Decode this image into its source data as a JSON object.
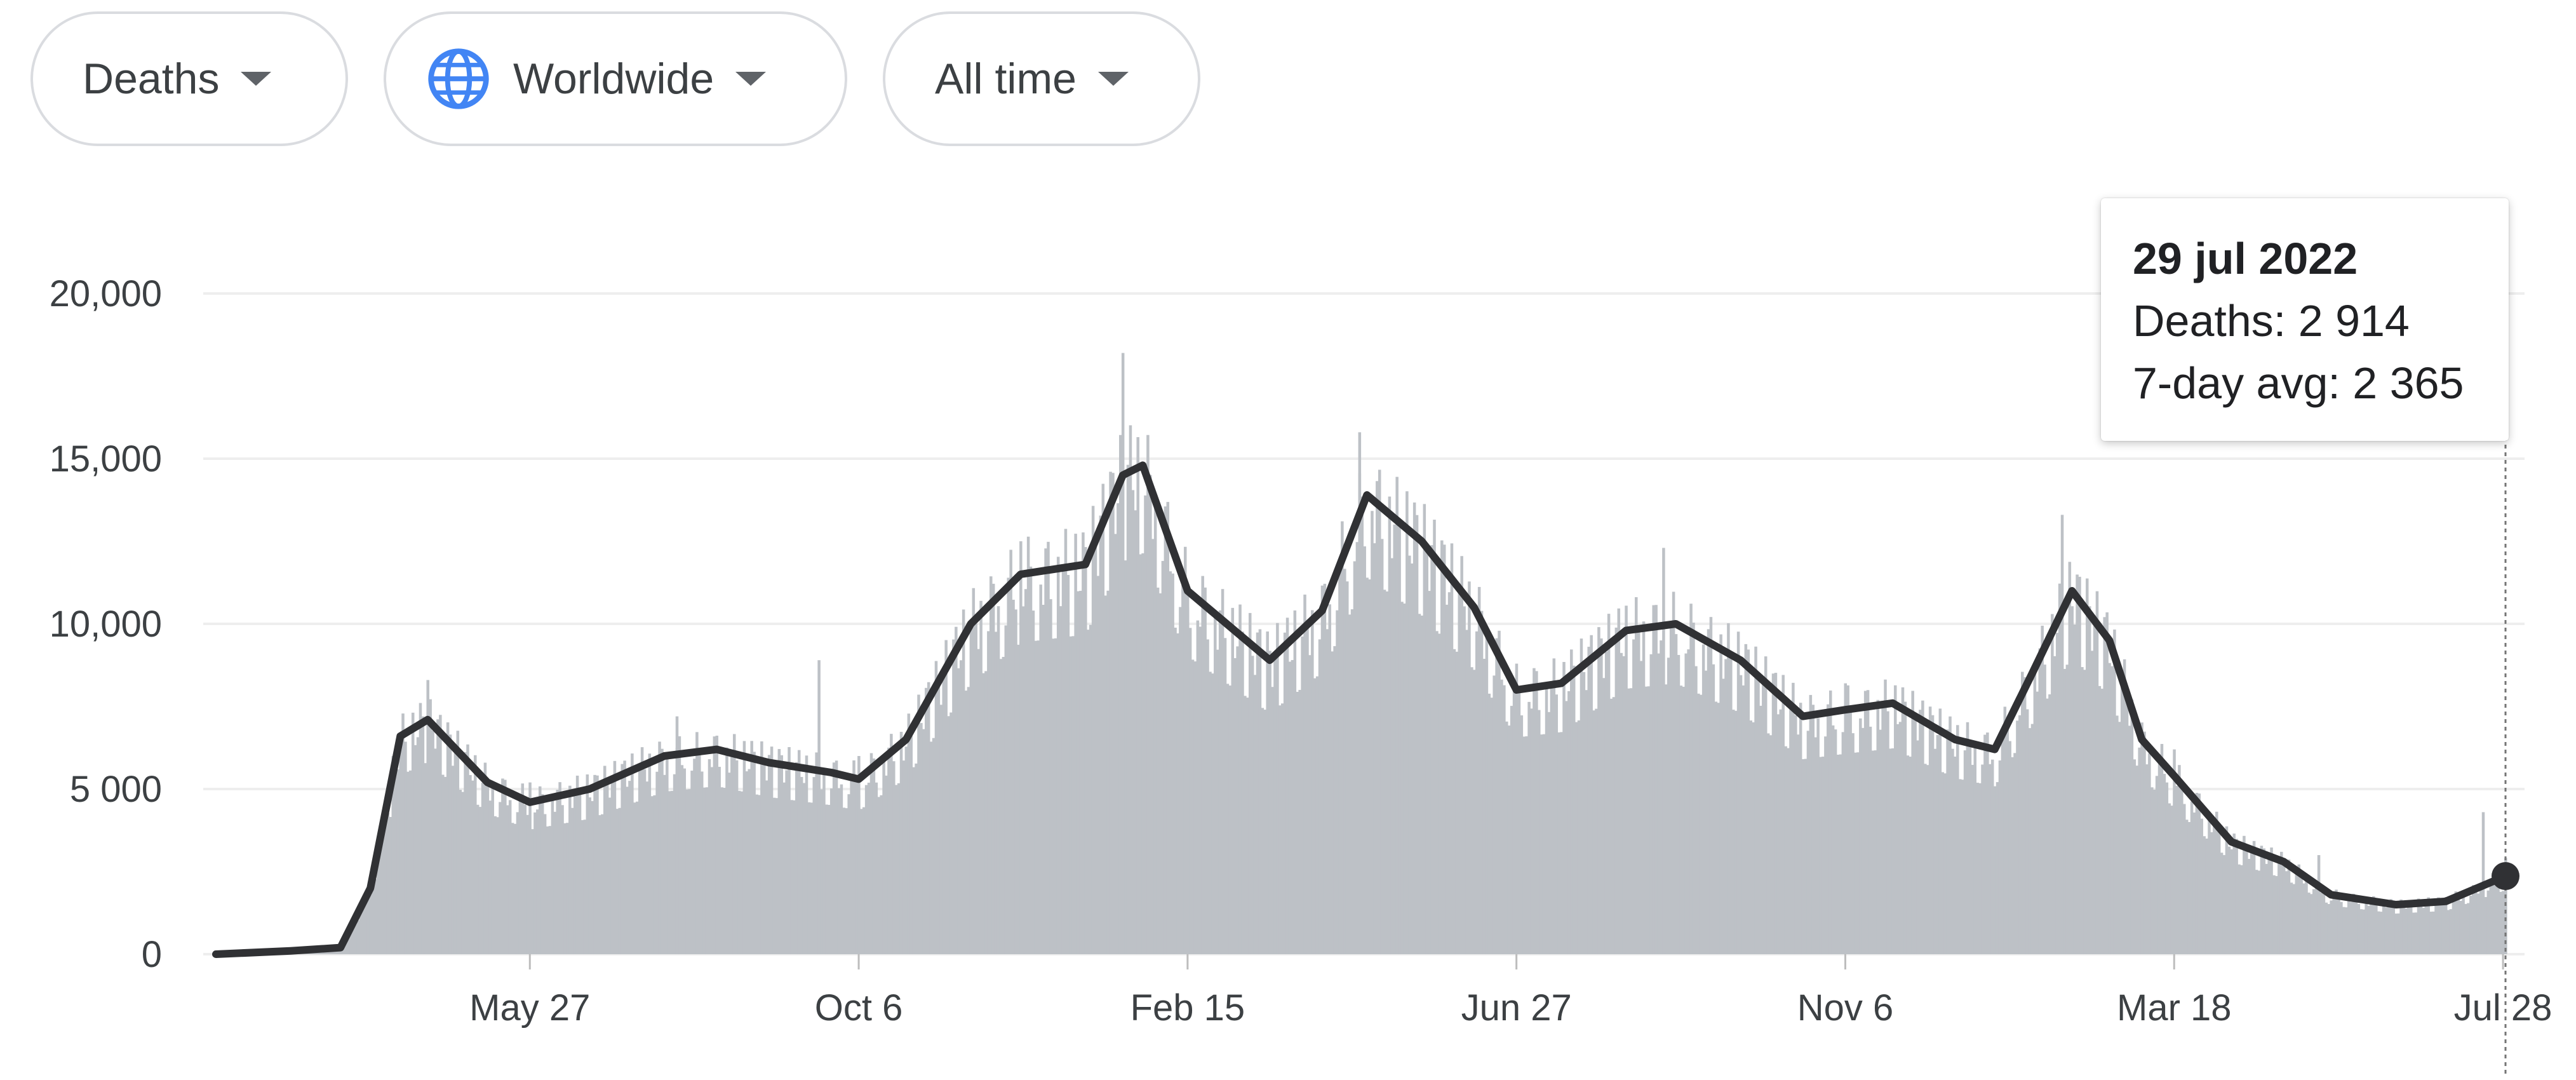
{
  "filters": {
    "metric": {
      "label": "Deaths"
    },
    "region": {
      "label": "Worldwide",
      "icon": "globe-icon"
    },
    "range": {
      "label": "All time"
    },
    "dropdown_icon": "caret-down-icon"
  },
  "tooltip": {
    "date": "29 jul 2022",
    "deaths_label": "Deaths: 2 914",
    "avg_label": "7-day avg: 2 365"
  },
  "colors": {
    "bars": "#bdc1c6",
    "line": "#303134",
    "grid": "#eeeeee",
    "globe": "#4285f4"
  },
  "chart_data": {
    "type": "bar",
    "title": "",
    "xlabel": "",
    "ylabel": "",
    "ylim": [
      0,
      20000
    ],
    "yticks": [
      0,
      5000,
      10000,
      15000,
      20000
    ],
    "ytick_labels": [
      "0",
      "5 000",
      "10,000",
      "15,000",
      "20,000"
    ],
    "xtick_labels": [
      "May 27",
      "Oct 6",
      "Feb 15",
      "Jun 27",
      "Nov 6",
      "Mar 18",
      "Jul 28"
    ],
    "xtick_dates": [
      "2020-05-27",
      "2020-10-06",
      "2021-02-15",
      "2021-06-27",
      "2021-11-06",
      "2022-03-18",
      "2022-07-28"
    ],
    "x_range": [
      "2020-01-22",
      "2022-07-29"
    ],
    "grid": true,
    "legend": "none",
    "series": [
      {
        "type": "bar",
        "description": "daily deaths"
      },
      {
        "type": "line",
        "description": "7-day average"
      }
    ],
    "daily_deaths_samples": [
      [
        "2020-01-22",
        0
      ],
      [
        "2020-02-20",
        100
      ],
      [
        "2020-03-15",
        400
      ],
      [
        "2020-04-02",
        6000
      ],
      [
        "2020-04-16",
        8300
      ],
      [
        "2020-05-27",
        5200
      ],
      [
        "2020-07-25",
        7200
      ],
      [
        "2020-09-20",
        8900
      ],
      [
        "2020-10-06",
        6000
      ],
      [
        "2020-12-10",
        12500
      ],
      [
        "2021-01-20",
        18200
      ],
      [
        "2021-02-15",
        10500
      ],
      [
        "2021-04-25",
        15800
      ],
      [
        "2021-06-27",
        8000
      ],
      [
        "2021-08-25",
        12300
      ],
      [
        "2021-11-06",
        8200
      ],
      [
        "2021-12-25",
        6800
      ],
      [
        "2022-02-01",
        13300
      ],
      [
        "2022-03-18",
        6200
      ],
      [
        "2022-05-15",
        3000
      ],
      [
        "2022-07-20",
        4300
      ],
      [
        "2022-07-29",
        2914
      ]
    ],
    "avg_7day_samples": [
      [
        "2020-01-22",
        0
      ],
      [
        "2020-02-21",
        100
      ],
      [
        "2020-03-12",
        200
      ],
      [
        "2020-03-24",
        2000
      ],
      [
        "2020-04-05",
        6600
      ],
      [
        "2020-04-16",
        7100
      ],
      [
        "2020-05-10",
        5200
      ],
      [
        "2020-05-27",
        4600
      ],
      [
        "2020-06-20",
        5000
      ],
      [
        "2020-07-20",
        6000
      ],
      [
        "2020-08-10",
        6200
      ],
      [
        "2020-08-31",
        5800
      ],
      [
        "2020-09-25",
        5500
      ],
      [
        "2020-10-06",
        5300
      ],
      [
        "2020-10-25",
        6500
      ],
      [
        "2020-11-20",
        10000
      ],
      [
        "2020-12-10",
        11500
      ],
      [
        "2021-01-05",
        11800
      ],
      [
        "2021-01-20",
        14500
      ],
      [
        "2021-01-28",
        14800
      ],
      [
        "2021-02-15",
        11000
      ],
      [
        "2021-03-20",
        8900
      ],
      [
        "2021-04-10",
        10400
      ],
      [
        "2021-04-28",
        13900
      ],
      [
        "2021-05-20",
        12500
      ],
      [
        "2021-06-10",
        10500
      ],
      [
        "2021-06-27",
        8000
      ],
      [
        "2021-07-15",
        8200
      ],
      [
        "2021-08-10",
        9800
      ],
      [
        "2021-08-30",
        10000
      ],
      [
        "2021-09-25",
        8900
      ],
      [
        "2021-10-20",
        7200
      ],
      [
        "2021-11-06",
        7400
      ],
      [
        "2021-11-25",
        7600
      ],
      [
        "2021-12-20",
        6500
      ],
      [
        "2022-01-05",
        6200
      ],
      [
        "2022-01-20",
        8500
      ],
      [
        "2022-02-05",
        11000
      ],
      [
        "2022-02-20",
        9500
      ],
      [
        "2022-03-05",
        6500
      ],
      [
        "2022-03-18",
        5400
      ],
      [
        "2022-04-10",
        3400
      ],
      [
        "2022-05-01",
        2800
      ],
      [
        "2022-05-20",
        1800
      ],
      [
        "2022-06-15",
        1500
      ],
      [
        "2022-07-05",
        1600
      ],
      [
        "2022-07-29",
        2365
      ]
    ],
    "highlight": {
      "date": "2022-07-29",
      "deaths": 2914,
      "avg_7day": 2365
    }
  }
}
